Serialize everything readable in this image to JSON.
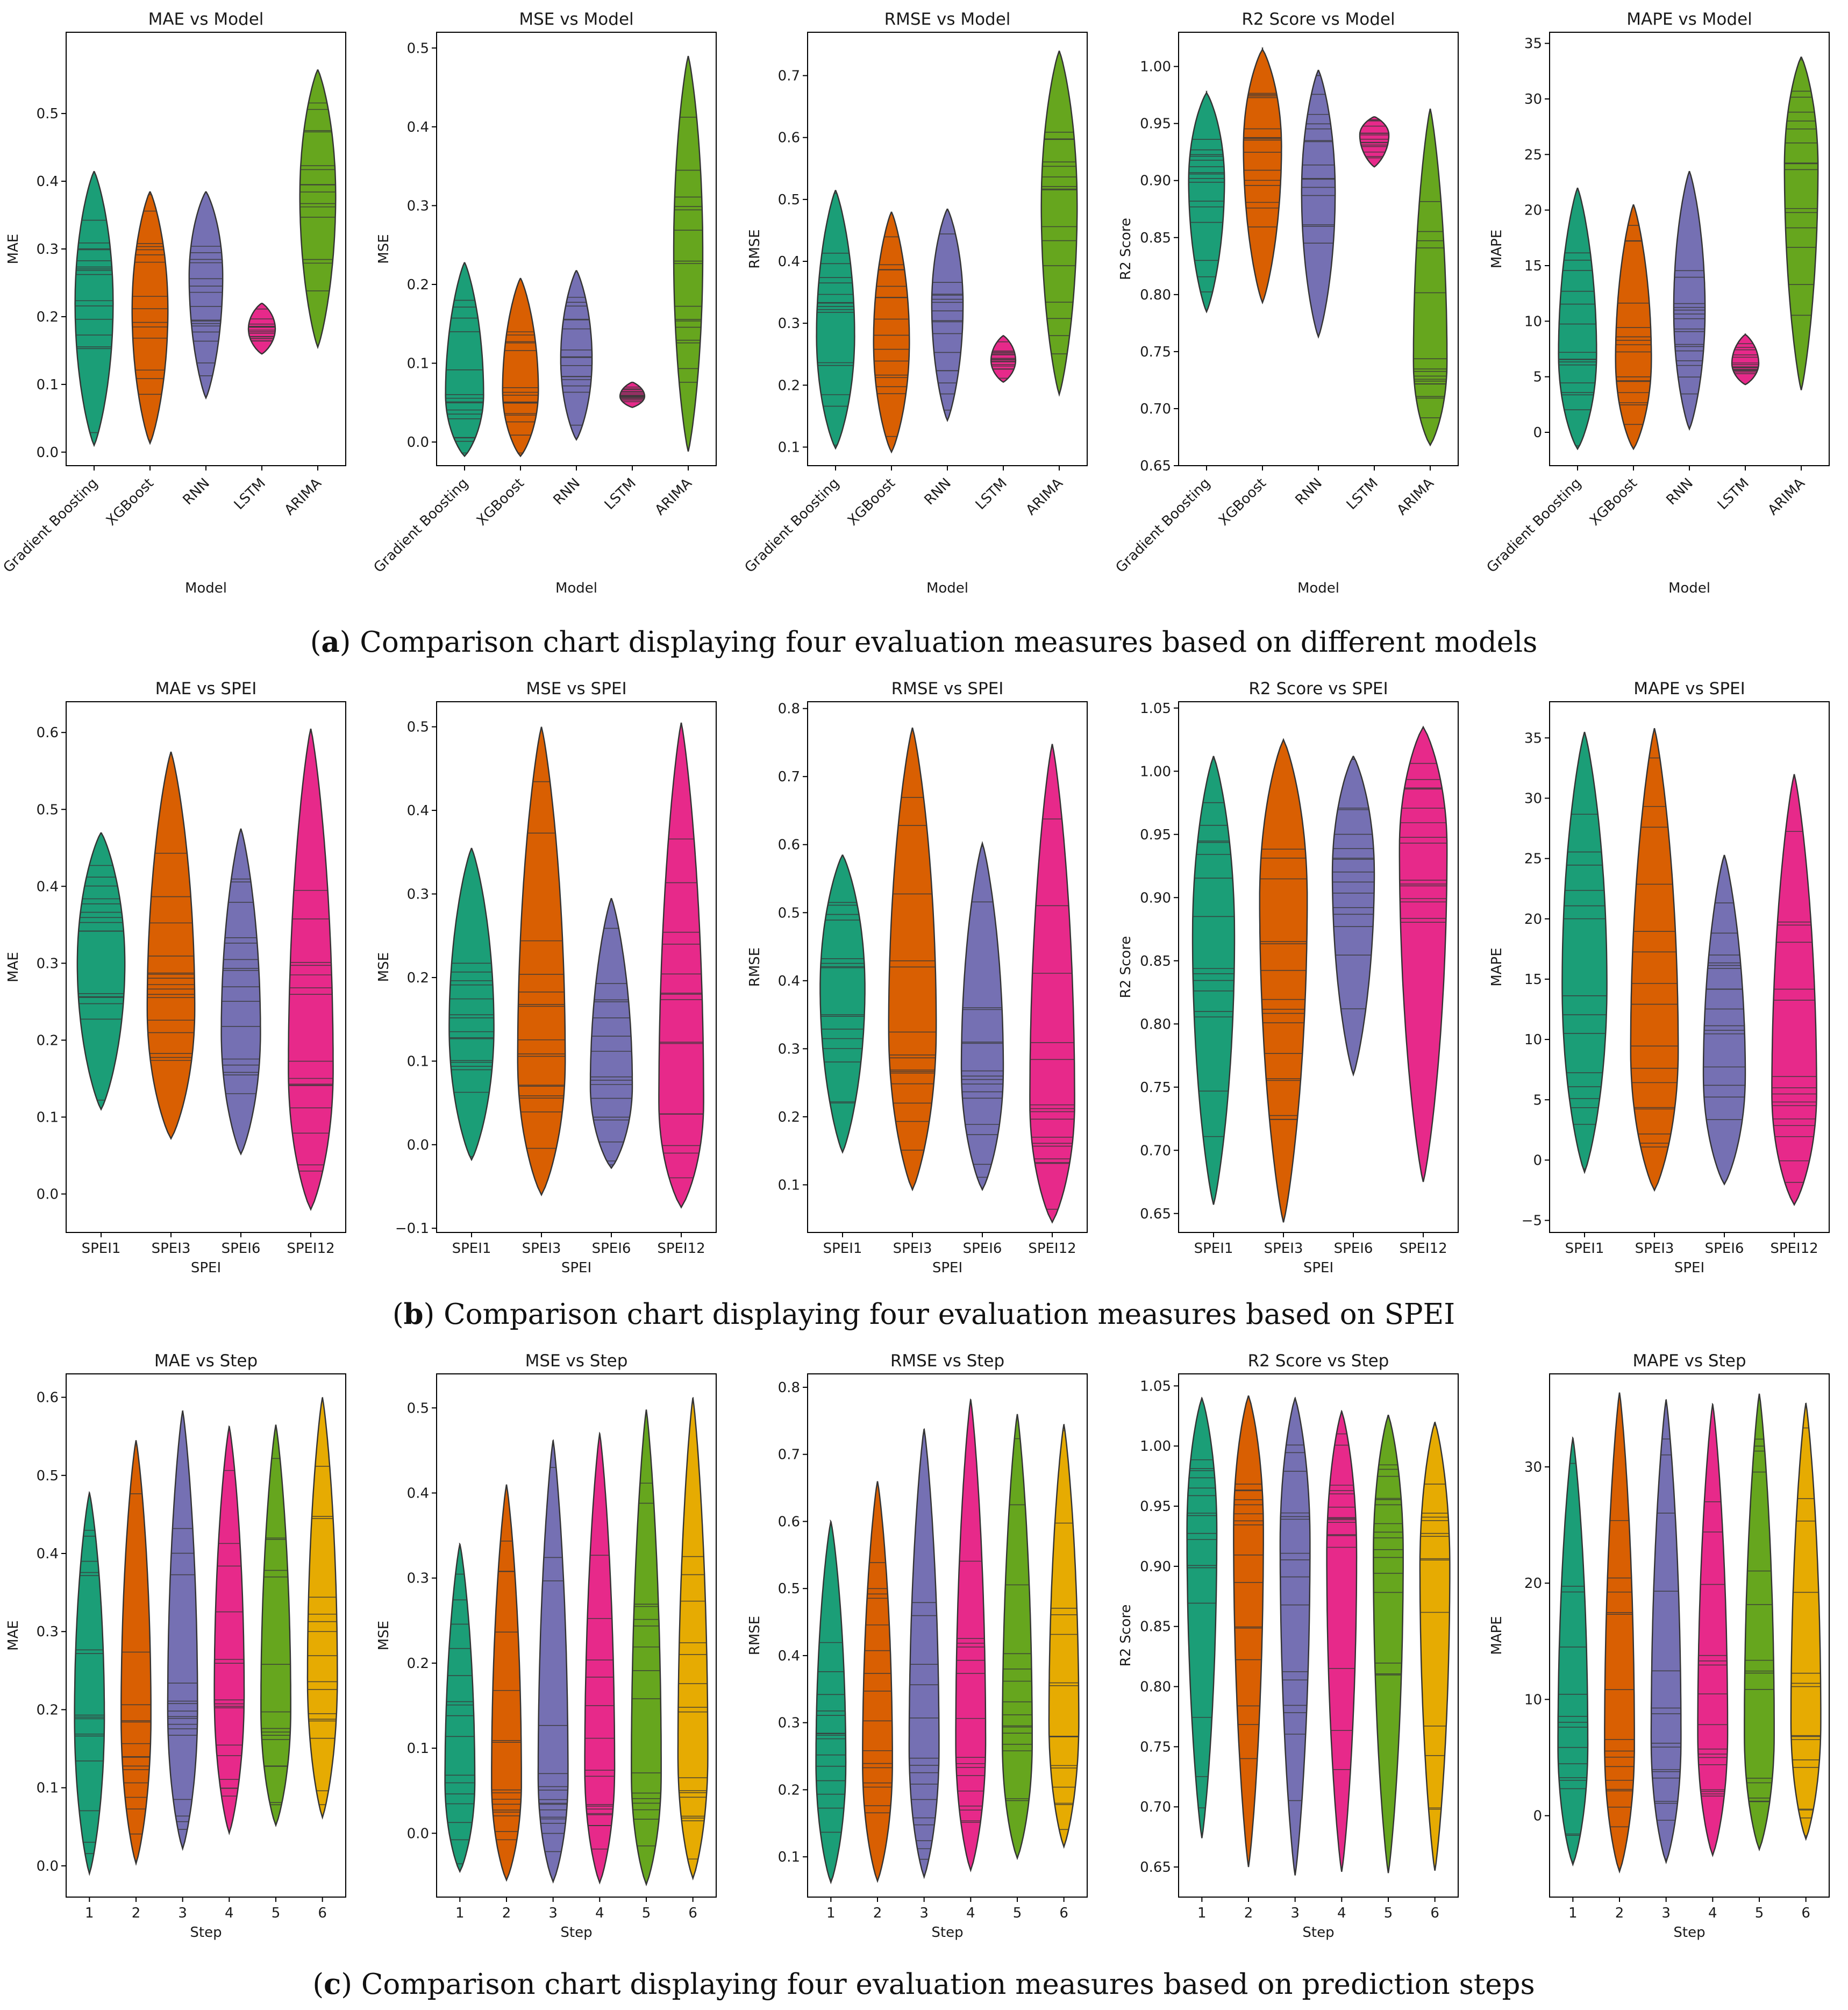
{
  "colors": {
    "palette": [
      "#1b9e77",
      "#d95f02",
      "#7570b3",
      "#e7298a",
      "#66a61e",
      "#e6ab02"
    ],
    "outline": "#333333",
    "quartile": "#3a3a3a"
  },
  "captions": [
    {
      "label": "a",
      "open": "(",
      "close": ")",
      "text": " Comparison chart displaying four evaluation measures based on different models"
    },
    {
      "label": "b",
      "open": "(",
      "close": ")",
      "text": " Comparison chart displaying four evaluation measures based on SPEI"
    },
    {
      "label": "c",
      "open": "(",
      "close": ")",
      "text": " Comparison chart displaying four evaluation measures based on prediction steps"
    }
  ],
  "chart_data": [
    {
      "type": "violin",
      "row": 0,
      "col": 0,
      "title": "MAE vs Model",
      "xlabel": "Model",
      "ylabel": "MAE",
      "categories": [
        "Gradient Boosting",
        "XGBoost",
        "RNN",
        "LSTM",
        "ARIMA"
      ],
      "rotate_ticks": true,
      "ylim": [
        -0.02,
        0.62
      ],
      "yticks": [
        0.0,
        0.1,
        0.2,
        0.3,
        0.4,
        0.5
      ],
      "ytick_labels": [
        "0.0",
        "0.1",
        "0.2",
        "0.3",
        "0.4",
        "0.5"
      ],
      "violins": [
        {
          "min": 0.01,
          "max": 0.415,
          "center": 0.22,
          "width": 0.85
        },
        {
          "min": 0.013,
          "max": 0.385,
          "center": 0.21,
          "width": 0.8
        },
        {
          "min": 0.08,
          "max": 0.385,
          "center": 0.26,
          "width": 0.75
        },
        {
          "min": 0.145,
          "max": 0.22,
          "center": 0.182,
          "width": 0.6
        },
        {
          "min": 0.155,
          "max": 0.565,
          "center": 0.38,
          "width": 0.8
        }
      ]
    },
    {
      "type": "violin",
      "row": 0,
      "col": 1,
      "title": "MSE vs Model",
      "xlabel": "Model",
      "ylabel": "MSE",
      "categories": [
        "Gradient Boosting",
        "XGBoost",
        "RNN",
        "LSTM",
        "ARIMA"
      ],
      "rotate_ticks": true,
      "ylim": [
        -0.03,
        0.52
      ],
      "yticks": [
        0.0,
        0.1,
        0.2,
        0.3,
        0.4,
        0.5
      ],
      "ytick_labels": [
        "0.0",
        "0.1",
        "0.2",
        "0.3",
        "0.4",
        "0.5"
      ],
      "violins": [
        {
          "min": -0.018,
          "max": 0.228,
          "center": 0.06,
          "width": 0.85
        },
        {
          "min": -0.018,
          "max": 0.208,
          "center": 0.065,
          "width": 0.8
        },
        {
          "min": 0.003,
          "max": 0.218,
          "center": 0.105,
          "width": 0.7
        },
        {
          "min": 0.044,
          "max": 0.076,
          "center": 0.058,
          "width": 0.55
        },
        {
          "min": -0.012,
          "max": 0.49,
          "center": 0.24,
          "width": 0.65
        }
      ]
    },
    {
      "type": "violin",
      "row": 0,
      "col": 2,
      "title": "RMSE vs Model",
      "xlabel": "Model",
      "ylabel": "RMSE",
      "categories": [
        "Gradient Boosting",
        "XGBoost",
        "RNN",
        "LSTM",
        "ARIMA"
      ],
      "rotate_ticks": true,
      "ylim": [
        0.07,
        0.77
      ],
      "yticks": [
        0.1,
        0.2,
        0.3,
        0.4,
        0.5,
        0.6,
        0.7
      ],
      "ytick_labels": [
        "0.1",
        "0.2",
        "0.3",
        "0.4",
        "0.5",
        "0.6",
        "0.7"
      ],
      "violins": [
        {
          "min": 0.098,
          "max": 0.515,
          "center": 0.28,
          "width": 0.85
        },
        {
          "min": 0.092,
          "max": 0.48,
          "center": 0.27,
          "width": 0.8
        },
        {
          "min": 0.143,
          "max": 0.485,
          "center": 0.33,
          "width": 0.7
        },
        {
          "min": 0.205,
          "max": 0.28,
          "center": 0.24,
          "width": 0.55
        },
        {
          "min": 0.185,
          "max": 0.74,
          "center": 0.49,
          "width": 0.8
        }
      ]
    },
    {
      "type": "violin",
      "row": 0,
      "col": 3,
      "title": "R2 Score vs Model",
      "xlabel": "Model",
      "ylabel": "R2 Score",
      "categories": [
        "Gradient Boosting",
        "XGBoost",
        "RNN",
        "LSTM",
        "ARIMA"
      ],
      "rotate_ticks": true,
      "ylim": [
        0.65,
        1.03
      ],
      "yticks": [
        0.65,
        0.7,
        0.75,
        0.8,
        0.85,
        0.9,
        0.95,
        1.0
      ],
      "ytick_labels": [
        "0.65",
        "0.70",
        "0.75",
        "0.80",
        "0.85",
        "0.90",
        "0.95",
        "1.00"
      ],
      "violins": [
        {
          "min": 0.785,
          "max": 0.977,
          "center": 0.9,
          "width": 0.8
        },
        {
          "min": 0.793,
          "max": 1.015,
          "center": 0.93,
          "width": 0.85
        },
        {
          "min": 0.763,
          "max": 0.997,
          "center": 0.89,
          "width": 0.75
        },
        {
          "min": 0.912,
          "max": 0.956,
          "center": 0.94,
          "width": 0.65
        },
        {
          "min": 0.668,
          "max": 0.963,
          "center": 0.74,
          "width": 0.75
        }
      ]
    },
    {
      "type": "violin",
      "row": 0,
      "col": 4,
      "title": "MAPE vs Model",
      "xlabel": "Model",
      "ylabel": "MAPE",
      "categories": [
        "Gradient Boosting",
        "XGBoost",
        "RNN",
        "LSTM",
        "ARIMA"
      ],
      "rotate_ticks": true,
      "ylim": [
        -3,
        36
      ],
      "yticks": [
        0,
        5,
        10,
        15,
        20,
        25,
        30,
        35
      ],
      "ytick_labels": [
        "0",
        "5",
        "10",
        "15",
        "20",
        "25",
        "30",
        "35"
      ],
      "violins": [
        {
          "min": -1.5,
          "max": 22,
          "center": 7,
          "width": 0.85
        },
        {
          "min": -1.5,
          "max": 20.5,
          "center": 6.5,
          "width": 0.8
        },
        {
          "min": 0.3,
          "max": 23.5,
          "center": 11,
          "width": 0.7
        },
        {
          "min": 4.3,
          "max": 8.8,
          "center": 6.2,
          "width": 0.6
        },
        {
          "min": 3.8,
          "max": 33.8,
          "center": 24,
          "width": 0.75
        }
      ]
    },
    {
      "type": "violin",
      "row": 1,
      "col": 0,
      "title": "MAE vs SPEI",
      "xlabel": "SPEI",
      "ylabel": "MAE",
      "categories": [
        "SPEI1",
        "SPEI3",
        "SPEI6",
        "SPEI12"
      ],
      "rotate_ticks": false,
      "ylim": [
        -0.05,
        0.64
      ],
      "yticks": [
        0.0,
        0.1,
        0.2,
        0.3,
        0.4,
        0.5,
        0.6
      ],
      "ytick_labels": [
        "0.0",
        "0.1",
        "0.2",
        "0.3",
        "0.4",
        "0.5",
        "0.6"
      ],
      "violins": [
        {
          "min": 0.11,
          "max": 0.47,
          "center": 0.3,
          "width": 0.85
        },
        {
          "min": 0.072,
          "max": 0.575,
          "center": 0.24,
          "width": 0.85
        },
        {
          "min": 0.052,
          "max": 0.475,
          "center": 0.21,
          "width": 0.7
        },
        {
          "min": -0.02,
          "max": 0.605,
          "center": 0.16,
          "width": 0.8
        }
      ]
    },
    {
      "type": "violin",
      "row": 1,
      "col": 1,
      "title": "MSE vs SPEI",
      "xlabel": "SPEI",
      "ylabel": "MSE",
      "categories": [
        "SPEI1",
        "SPEI3",
        "SPEI6",
        "SPEI12"
      ],
      "rotate_ticks": false,
      "ylim": [
        -0.105,
        0.53
      ],
      "yticks": [
        -0.1,
        0.0,
        0.1,
        0.2,
        0.3,
        0.4,
        0.5
      ],
      "ytick_labels": [
        "−0.1",
        "0.0",
        "0.1",
        "0.2",
        "0.3",
        "0.4",
        "0.5"
      ],
      "violins": [
        {
          "min": -0.018,
          "max": 0.355,
          "center": 0.14,
          "width": 0.8
        },
        {
          "min": -0.06,
          "max": 0.5,
          "center": 0.1,
          "width": 0.85
        },
        {
          "min": -0.028,
          "max": 0.295,
          "center": 0.07,
          "width": 0.75
        },
        {
          "min": -0.075,
          "max": 0.505,
          "center": 0.05,
          "width": 0.8
        }
      ]
    },
    {
      "type": "violin",
      "row": 1,
      "col": 2,
      "title": "RMSE vs SPEI",
      "xlabel": "SPEI",
      "ylabel": "RMSE",
      "categories": [
        "SPEI1",
        "SPEI3",
        "SPEI6",
        "SPEI12"
      ],
      "rotate_ticks": false,
      "ylim": [
        0.03,
        0.81
      ],
      "yticks": [
        0.1,
        0.2,
        0.3,
        0.4,
        0.5,
        0.6,
        0.7,
        0.8
      ],
      "ytick_labels": [
        "0.1",
        "0.2",
        "0.3",
        "0.4",
        "0.5",
        "0.6",
        "0.7",
        "0.8"
      ],
      "violins": [
        {
          "min": 0.148,
          "max": 0.585,
          "center": 0.39,
          "width": 0.8
        },
        {
          "min": 0.093,
          "max": 0.772,
          "center": 0.33,
          "width": 0.85
        },
        {
          "min": 0.093,
          "max": 0.602,
          "center": 0.27,
          "width": 0.75
        },
        {
          "min": 0.045,
          "max": 0.748,
          "center": 0.22,
          "width": 0.8
        }
      ]
    },
    {
      "type": "violin",
      "row": 1,
      "col": 3,
      "title": "R2 Score vs SPEI",
      "xlabel": "SPEI",
      "ylabel": "R2 Score",
      "categories": [
        "SPEI1",
        "SPEI3",
        "SPEI6",
        "SPEI12"
      ],
      "rotate_ticks": false,
      "ylim": [
        0.635,
        1.055
      ],
      "yticks": [
        0.65,
        0.7,
        0.75,
        0.8,
        0.85,
        0.9,
        0.95,
        1.0,
        1.05
      ],
      "ytick_labels": [
        "0.65",
        "0.70",
        "0.75",
        "0.80",
        "0.85",
        "0.90",
        "0.95",
        "1.00",
        "1.05"
      ],
      "violins": [
        {
          "min": 0.657,
          "max": 1.012,
          "center": 0.87,
          "width": 0.75
        },
        {
          "min": 0.643,
          "max": 1.025,
          "center": 0.9,
          "width": 0.85
        },
        {
          "min": 0.76,
          "max": 1.012,
          "center": 0.92,
          "width": 0.75
        },
        {
          "min": 0.675,
          "max": 1.035,
          "center": 0.94,
          "width": 0.85
        }
      ]
    },
    {
      "type": "violin",
      "row": 1,
      "col": 4,
      "title": "MAPE vs SPEI",
      "xlabel": "SPEI",
      "ylabel": "MAPE",
      "categories": [
        "SPEI1",
        "SPEI3",
        "SPEI6",
        "SPEI12"
      ],
      "rotate_ticks": false,
      "ylim": [
        -6,
        38
      ],
      "yticks": [
        -5,
        0,
        5,
        10,
        15,
        20,
        25,
        30,
        35
      ],
      "ytick_labels": [
        "−5",
        "0",
        "5",
        "10",
        "15",
        "20",
        "25",
        "30",
        "35"
      ],
      "violins": [
        {
          "min": -1,
          "max": 35.5,
          "center": 14.5,
          "width": 0.8
        },
        {
          "min": -2.5,
          "max": 35.8,
          "center": 9,
          "width": 0.85
        },
        {
          "min": -2,
          "max": 25.3,
          "center": 7,
          "width": 0.75
        },
        {
          "min": -3.7,
          "max": 32,
          "center": 5.5,
          "width": 0.8
        }
      ]
    },
    {
      "type": "violin",
      "row": 2,
      "col": 0,
      "title": "MAE vs Step",
      "xlabel": "Step",
      "ylabel": "MAE",
      "categories": [
        "1",
        "2",
        "3",
        "4",
        "5",
        "6"
      ],
      "rotate_ticks": false,
      "ylim": [
        -0.04,
        0.63
      ],
      "yticks": [
        0.0,
        0.1,
        0.2,
        0.3,
        0.4,
        0.5,
        0.6
      ],
      "ytick_labels": [
        "0.0",
        "0.1",
        "0.2",
        "0.3",
        "0.4",
        "0.5",
        "0.6"
      ],
      "violins": [
        {
          "min": -0.01,
          "max": 0.478,
          "center": 0.19,
          "width": 0.8
        },
        {
          "min": 0.003,
          "max": 0.545,
          "center": 0.19,
          "width": 0.8
        },
        {
          "min": 0.022,
          "max": 0.583,
          "center": 0.2,
          "width": 0.8
        },
        {
          "min": 0.042,
          "max": 0.563,
          "center": 0.22,
          "width": 0.8
        },
        {
          "min": 0.052,
          "max": 0.565,
          "center": 0.2,
          "width": 0.8
        },
        {
          "min": 0.062,
          "max": 0.6,
          "center": 0.24,
          "width": 0.8
        }
      ]
    },
    {
      "type": "violin",
      "row": 2,
      "col": 1,
      "title": "MSE vs Step",
      "xlabel": "Step",
      "ylabel": "MSE",
      "categories": [
        "1",
        "2",
        "3",
        "4",
        "5",
        "6"
      ],
      "rotate_ticks": false,
      "ylim": [
        -0.075,
        0.54
      ],
      "yticks": [
        0.0,
        0.1,
        0.2,
        0.3,
        0.4,
        0.5
      ],
      "ytick_labels": [
        "0.0",
        "0.1",
        "0.2",
        "0.3",
        "0.4",
        "0.5"
      ],
      "violins": [
        {
          "min": -0.045,
          "max": 0.34,
          "center": 0.06,
          "width": 0.8
        },
        {
          "min": -0.055,
          "max": 0.41,
          "center": 0.06,
          "width": 0.8
        },
        {
          "min": -0.057,
          "max": 0.462,
          "center": 0.065,
          "width": 0.8
        },
        {
          "min": -0.058,
          "max": 0.47,
          "center": 0.075,
          "width": 0.8
        },
        {
          "min": -0.06,
          "max": 0.498,
          "center": 0.07,
          "width": 0.8
        },
        {
          "min": -0.053,
          "max": 0.512,
          "center": 0.09,
          "width": 0.8
        }
      ]
    },
    {
      "type": "violin",
      "row": 2,
      "col": 2,
      "title": "RMSE vs Step",
      "xlabel": "Step",
      "ylabel": "RMSE",
      "categories": [
        "1",
        "2",
        "3",
        "4",
        "5",
        "6"
      ],
      "rotate_ticks": false,
      "ylim": [
        0.04,
        0.82
      ],
      "yticks": [
        0.1,
        0.2,
        0.3,
        0.4,
        0.5,
        0.6,
        0.7,
        0.8
      ],
      "ytick_labels": [
        "0.1",
        "0.2",
        "0.3",
        "0.4",
        "0.5",
        "0.6",
        "0.7",
        "0.8"
      ],
      "violins": [
        {
          "min": 0.062,
          "max": 0.6,
          "center": 0.24,
          "width": 0.8
        },
        {
          "min": 0.064,
          "max": 0.66,
          "center": 0.24,
          "width": 0.8
        },
        {
          "min": 0.07,
          "max": 0.738,
          "center": 0.26,
          "width": 0.8
        },
        {
          "min": 0.08,
          "max": 0.782,
          "center": 0.27,
          "width": 0.8
        },
        {
          "min": 0.098,
          "max": 0.76,
          "center": 0.27,
          "width": 0.8
        },
        {
          "min": 0.115,
          "max": 0.745,
          "center": 0.3,
          "width": 0.8
        }
      ]
    },
    {
      "type": "violin",
      "row": 2,
      "col": 3,
      "title": "R2 Score vs Step",
      "xlabel": "Step",
      "ylabel": "R2 Score",
      "categories": [
        "1",
        "2",
        "3",
        "4",
        "5",
        "6"
      ],
      "rotate_ticks": false,
      "ylim": [
        0.625,
        1.06
      ],
      "yticks": [
        0.65,
        0.7,
        0.75,
        0.8,
        0.85,
        0.9,
        0.95,
        1.0,
        1.05
      ],
      "ytick_labels": [
        "0.65",
        "0.70",
        "0.75",
        "0.80",
        "0.85",
        "0.90",
        "0.95",
        "1.00",
        "1.05"
      ],
      "violins": [
        {
          "min": 0.674,
          "max": 1.04,
          "center": 0.93,
          "width": 0.8
        },
        {
          "min": 0.65,
          "max": 1.042,
          "center": 0.93,
          "width": 0.8
        },
        {
          "min": 0.643,
          "max": 1.04,
          "center": 0.92,
          "width": 0.8
        },
        {
          "min": 0.646,
          "max": 1.029,
          "center": 0.91,
          "width": 0.8
        },
        {
          "min": 0.645,
          "max": 1.026,
          "center": 0.91,
          "width": 0.8
        },
        {
          "min": 0.647,
          "max": 1.02,
          "center": 0.9,
          "width": 0.8
        }
      ]
    },
    {
      "type": "violin",
      "row": 2,
      "col": 4,
      "title": "MAPE vs Step",
      "xlabel": "Step",
      "ylabel": "MAPE",
      "categories": [
        "1",
        "2",
        "3",
        "4",
        "5",
        "6"
      ],
      "rotate_ticks": false,
      "ylim": [
        -7,
        38
      ],
      "yticks": [
        0,
        10,
        20,
        30
      ],
      "ytick_labels": [
        "0",
        "10",
        "20",
        "30"
      ],
      "violins": [
        {
          "min": -4.2,
          "max": 32.5,
          "center": 6,
          "width": 0.8
        },
        {
          "min": -4.8,
          "max": 36.4,
          "center": 6,
          "width": 0.8
        },
        {
          "min": -4.0,
          "max": 35.8,
          "center": 6.5,
          "width": 0.8
        },
        {
          "min": -3.4,
          "max": 35.4,
          "center": 7,
          "width": 0.8
        },
        {
          "min": -2.9,
          "max": 36.3,
          "center": 7,
          "width": 0.8
        },
        {
          "min": -2.0,
          "max": 35.5,
          "center": 8,
          "width": 0.8
        }
      ]
    }
  ]
}
